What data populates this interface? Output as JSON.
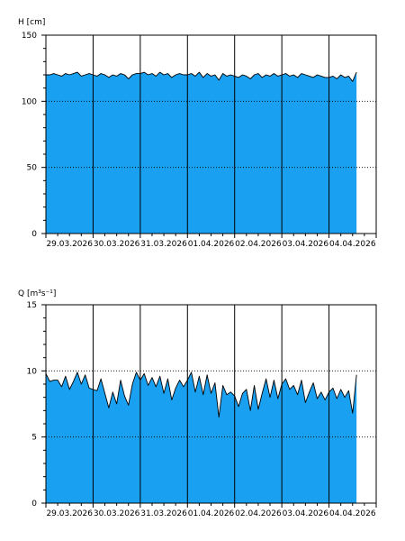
{
  "colors": {
    "fill": "#1aa0f0",
    "line": "#000000",
    "frame": "#000000",
    "grid": "#000000",
    "background": "#ffffff"
  },
  "chart_data": [
    {
      "type": "area",
      "ylabel": "H [cm]",
      "ylim": [
        0,
        150
      ],
      "yticks": [
        0,
        50,
        100,
        150
      ],
      "xlim": [
        "29.03.2026 00:00",
        "05.04.2026 00:00"
      ],
      "day_labels": [
        "29.03.2026",
        "30.03.2026",
        "31.03.2026",
        "01.04.2026",
        "02.04.2026",
        "03.04.2026",
        "04.04.2026"
      ],
      "grid": {
        "vertical_days": true,
        "horizontal_dotted": [
          50,
          100
        ]
      },
      "series": [
        {
          "x_start": "29.03.2026 00:00",
          "x_step_hours": 2,
          "values": [
            120,
            120,
            121,
            120,
            119,
            121,
            120,
            121,
            122,
            119,
            120,
            121,
            120,
            119,
            121,
            120,
            118,
            120,
            119,
            121,
            120,
            117,
            120,
            121,
            121,
            122,
            120,
            121,
            119,
            122,
            120,
            121,
            118,
            120,
            121,
            120,
            120,
            121,
            119,
            122,
            118,
            121,
            119,
            120,
            116,
            121,
            119,
            120,
            119,
            118,
            120,
            119,
            117,
            120,
            121,
            118,
            120,
            119,
            121,
            119,
            120,
            121,
            119,
            120,
            118,
            121,
            120,
            119,
            118,
            120,
            119,
            118,
            118,
            119,
            117,
            120,
            118,
            119,
            115,
            122
          ]
        }
      ]
    },
    {
      "type": "area",
      "ylabel": "Q [m³s⁻¹]",
      "ylim": [
        0,
        15
      ],
      "yticks": [
        0,
        5,
        10,
        15
      ],
      "xlim": [
        "29.03.2026 00:00",
        "05.04.2026 00:00"
      ],
      "day_labels": [
        "29.03.2026",
        "30.03.2026",
        "31.03.2026",
        "01.04.2026",
        "02.04.2026",
        "03.04.2026",
        "04.04.2026"
      ],
      "grid": {
        "vertical_days": true,
        "horizontal_dotted": [
          5,
          10
        ]
      },
      "series": [
        {
          "x_start": "29.03.2026 00:00",
          "x_step_hours": 2,
          "values": [
            9.8,
            9.2,
            9.3,
            9.3,
            8.8,
            9.6,
            8.6,
            9.2,
            9.9,
            9.0,
            9.7,
            8.7,
            8.6,
            8.5,
            9.4,
            8.3,
            7.2,
            8.4,
            7.5,
            9.3,
            8.1,
            7.4,
            9.0,
            9.9,
            9.3,
            9.8,
            8.9,
            9.5,
            8.8,
            9.6,
            8.3,
            9.4,
            7.8,
            8.7,
            9.3,
            8.8,
            9.3,
            9.9,
            8.4,
            9.6,
            8.2,
            9.7,
            8.3,
            9.1,
            6.5,
            8.9,
            8.2,
            8.4,
            8.1,
            7.3,
            8.3,
            8.6,
            7.0,
            8.9,
            7.1,
            8.3,
            9.4,
            8.0,
            9.3,
            7.9,
            9.0,
            9.4,
            8.6,
            8.9,
            8.2,
            9.3,
            7.6,
            8.4,
            9.1,
            7.9,
            8.4,
            7.8,
            8.4,
            8.7,
            7.9,
            8.6,
            8.0,
            8.5,
            6.8,
            9.7
          ]
        }
      ]
    }
  ]
}
